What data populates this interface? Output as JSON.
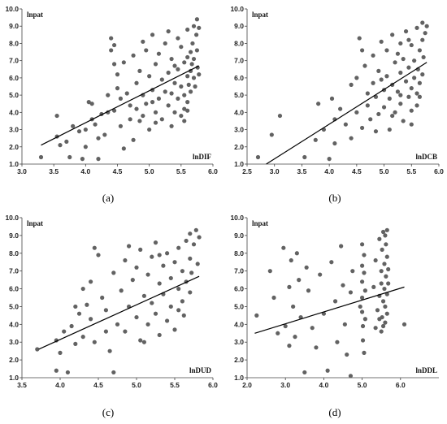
{
  "chart_data": [
    {
      "type": "scatter",
      "caption": "(a)",
      "ylabel": "lnpat",
      "xlabel": "lnDIF",
      "xlim": [
        3.0,
        6.0
      ],
      "ylim": [
        1.0,
        10.0
      ],
      "xticks": [
        "3.0",
        "3.5",
        "4.0",
        "4.5",
        "5.0",
        "5.5",
        "6.0"
      ],
      "yticks": [
        "1.0",
        "2.0",
        "3.0",
        "4.0",
        "5.0",
        "6.0",
        "7.0",
        "8.0",
        "9.0",
        "10.0"
      ],
      "trendline": {
        "x": [
          3.3,
          5.78
        ],
        "y": [
          2.1,
          6.7
        ]
      },
      "points": [
        [
          3.3,
          1.4
        ],
        [
          3.55,
          3.8
        ],
        [
          3.55,
          2.6
        ],
        [
          3.6,
          2.1
        ],
        [
          3.7,
          2.3
        ],
        [
          3.75,
          1.4
        ],
        [
          3.8,
          3.2
        ],
        [
          3.9,
          2.9
        ],
        [
          3.95,
          1.3
        ],
        [
          4.0,
          3.0
        ],
        [
          4.0,
          2.0
        ],
        [
          4.05,
          4.6
        ],
        [
          4.1,
          4.5
        ],
        [
          4.1,
          3.6
        ],
        [
          4.15,
          3.3
        ],
        [
          4.2,
          1.3
        ],
        [
          4.2,
          2.5
        ],
        [
          4.25,
          3.9
        ],
        [
          4.3,
          2.7
        ],
        [
          4.35,
          5.0
        ],
        [
          4.35,
          4.0
        ],
        [
          4.4,
          8.3
        ],
        [
          4.4,
          7.6
        ],
        [
          4.45,
          7.9
        ],
        [
          4.45,
          6.8
        ],
        [
          4.5,
          6.2
        ],
        [
          4.5,
          5.4
        ],
        [
          4.55,
          4.8
        ],
        [
          4.55,
          3.2
        ],
        [
          4.6,
          1.9
        ],
        [
          4.6,
          6.9
        ],
        [
          4.65,
          5.1
        ],
        [
          4.7,
          4.4
        ],
        [
          4.7,
          3.6
        ],
        [
          4.75,
          7.3
        ],
        [
          4.75,
          2.4
        ],
        [
          4.8,
          5.7
        ],
        [
          4.8,
          4.2
        ],
        [
          4.85,
          6.4
        ],
        [
          4.85,
          3.5
        ],
        [
          4.9,
          8.1
        ],
        [
          4.9,
          5.0
        ],
        [
          4.95,
          7.6
        ],
        [
          4.95,
          4.5
        ],
        [
          5.0,
          3.0
        ],
        [
          5.0,
          6.1
        ],
        [
          5.05,
          8.5
        ],
        [
          5.05,
          5.3
        ],
        [
          5.1,
          4.0
        ],
        [
          5.1,
          6.8
        ],
        [
          5.15,
          7.4
        ],
        [
          5.15,
          4.8
        ],
        [
          5.2,
          3.6
        ],
        [
          5.2,
          5.9
        ],
        [
          5.25,
          8.0
        ],
        [
          5.25,
          5.2
        ],
        [
          5.3,
          8.7
        ],
        [
          5.3,
          6.3
        ],
        [
          5.3,
          4.4
        ],
        [
          5.35,
          7.1
        ],
        [
          5.35,
          3.2
        ],
        [
          5.4,
          5.7
        ],
        [
          5.4,
          4.0
        ],
        [
          5.45,
          8.3
        ],
        [
          5.45,
          6.5
        ],
        [
          5.45,
          4.8
        ],
        [
          5.5,
          7.8
        ],
        [
          5.5,
          5.5
        ],
        [
          5.5,
          3.8
        ],
        [
          5.55,
          6.9
        ],
        [
          5.55,
          5.0
        ],
        [
          5.55,
          4.2
        ],
        [
          5.6,
          8.8
        ],
        [
          5.6,
          7.2
        ],
        [
          5.6,
          6.1
        ],
        [
          5.6,
          4.6
        ],
        [
          5.62,
          5.6
        ],
        [
          5.65,
          7.5
        ],
        [
          5.65,
          6.4
        ],
        [
          5.65,
          5.2
        ],
        [
          5.67,
          6.8
        ],
        [
          5.68,
          8.0
        ],
        [
          5.7,
          9.0
        ],
        [
          5.7,
          7.1
        ],
        [
          5.7,
          6.0
        ],
        [
          5.72,
          5.5
        ],
        [
          5.74,
          8.5
        ],
        [
          5.75,
          9.4
        ],
        [
          5.75,
          7.6
        ],
        [
          5.76,
          6.6
        ],
        [
          5.78,
          8.9
        ],
        [
          5.78,
          6.2
        ],
        [
          4.45,
          4.1
        ],
        [
          5.1,
          3.4
        ],
        [
          5.35,
          5.1
        ],
        [
          5.55,
          3.5
        ],
        [
          5.6,
          4.1
        ],
        [
          5.05,
          4.6
        ],
        [
          4.9,
          3.8
        ],
        [
          5.4,
          6.7
        ]
      ]
    },
    {
      "type": "scatter",
      "caption": "(b)",
      "ylabel": "lnpat",
      "xlabel": "lnDCB",
      "xlim": [
        2.5,
        6.0
      ],
      "ylim": [
        1.0,
        10.0
      ],
      "xticks": [
        "2.5",
        "3.0",
        "3.5",
        "4.0",
        "4.5",
        "5.0",
        "5.5",
        "6.0"
      ],
      "yticks": [
        "1.0",
        "2.0",
        "3.0",
        "4.0",
        "5.0",
        "6.0",
        "7.0",
        "8.0",
        "9.0",
        "10.0"
      ],
      "trendline": {
        "x": [
          2.85,
          5.78
        ],
        "y": [
          1.0,
          6.9
        ]
      },
      "points": [
        [
          2.7,
          1.4
        ],
        [
          2.95,
          2.7
        ],
        [
          3.1,
          3.8
        ],
        [
          3.55,
          1.4
        ],
        [
          3.75,
          2.4
        ],
        [
          3.8,
          4.5
        ],
        [
          3.9,
          3.0
        ],
        [
          4.0,
          1.3
        ],
        [
          4.05,
          4.8
        ],
        [
          4.1,
          3.6
        ],
        [
          4.1,
          2.2
        ],
        [
          4.2,
          4.2
        ],
        [
          4.3,
          3.3
        ],
        [
          4.4,
          5.6
        ],
        [
          4.4,
          2.5
        ],
        [
          4.5,
          4.0
        ],
        [
          4.5,
          6.0
        ],
        [
          4.55,
          8.3
        ],
        [
          4.6,
          7.6
        ],
        [
          4.6,
          3.1
        ],
        [
          4.65,
          6.7
        ],
        [
          4.7,
          5.1
        ],
        [
          4.7,
          4.4
        ],
        [
          4.75,
          3.6
        ],
        [
          4.8,
          7.3
        ],
        [
          4.8,
          5.7
        ],
        [
          4.85,
          4.9
        ],
        [
          4.9,
          6.4
        ],
        [
          4.9,
          3.9
        ],
        [
          4.95,
          8.1
        ],
        [
          5.0,
          5.3
        ],
        [
          5.0,
          4.3
        ],
        [
          5.05,
          7.6
        ],
        [
          5.05,
          6.1
        ],
        [
          5.1,
          4.8
        ],
        [
          5.1,
          3.0
        ],
        [
          5.15,
          8.5
        ],
        [
          5.15,
          5.6
        ],
        [
          5.2,
          6.9
        ],
        [
          5.2,
          4.0
        ],
        [
          5.25,
          7.4
        ],
        [
          5.25,
          5.2
        ],
        [
          5.3,
          8.0
        ],
        [
          5.3,
          6.3
        ],
        [
          5.3,
          4.5
        ],
        [
          5.35,
          7.1
        ],
        [
          5.35,
          3.5
        ],
        [
          5.4,
          5.8
        ],
        [
          5.4,
          8.7
        ],
        [
          5.45,
          6.6
        ],
        [
          5.45,
          4.9
        ],
        [
          5.5,
          7.9
        ],
        [
          5.5,
          5.4
        ],
        [
          5.5,
          4.1
        ],
        [
          5.55,
          7.0
        ],
        [
          5.55,
          6.0
        ],
        [
          5.6,
          8.9
        ],
        [
          5.6,
          5.1
        ],
        [
          5.62,
          6.5
        ],
        [
          5.65,
          7.6
        ],
        [
          5.65,
          5.7
        ],
        [
          5.7,
          9.2
        ],
        [
          5.7,
          8.2
        ],
        [
          5.7,
          6.2
        ],
        [
          5.72,
          7.2
        ],
        [
          5.75,
          8.6
        ],
        [
          5.78,
          9.0
        ],
        [
          5.5,
          3.3
        ],
        [
          5.3,
          5.0
        ],
        [
          4.95,
          5.9
        ],
        [
          5.6,
          4.4
        ],
        [
          5.15,
          3.8
        ],
        [
          4.85,
          2.9
        ],
        [
          5.45,
          8.2
        ],
        [
          5.65,
          4.9
        ]
      ]
    },
    {
      "type": "scatter",
      "caption": "(c)",
      "ylabel": "lnpat",
      "xlabel": "lnDUD",
      "xlim": [
        3.5,
        6.0
      ],
      "ylim": [
        1.0,
        10.0
      ],
      "xticks": [
        "3.5",
        "4.0",
        "4.5",
        "5.0",
        "5.5",
        "6.0"
      ],
      "yticks": [
        "1.0",
        "2.0",
        "3.0",
        "4.0",
        "5.0",
        "6.0",
        "7.0",
        "8.0",
        "9.0",
        "10.0"
      ],
      "trendline": {
        "x": [
          3.72,
          5.82
        ],
        "y": [
          2.6,
          6.7
        ]
      },
      "points": [
        [
          3.7,
          2.6
        ],
        [
          3.95,
          3.1
        ],
        [
          3.95,
          1.4
        ],
        [
          4.0,
          2.4
        ],
        [
          4.05,
          3.6
        ],
        [
          4.1,
          1.3
        ],
        [
          4.15,
          3.9
        ],
        [
          4.2,
          2.9
        ],
        [
          4.25,
          4.6
        ],
        [
          4.3,
          3.3
        ],
        [
          4.3,
          6.0
        ],
        [
          4.35,
          5.1
        ],
        [
          4.4,
          4.3
        ],
        [
          4.4,
          6.4
        ],
        [
          4.45,
          8.3
        ],
        [
          4.45,
          3.0
        ],
        [
          4.5,
          7.9
        ],
        [
          4.55,
          5.5
        ],
        [
          4.6,
          4.8
        ],
        [
          4.65,
          2.5
        ],
        [
          4.7,
          6.9
        ],
        [
          4.7,
          1.3
        ],
        [
          4.75,
          4.0
        ],
        [
          4.8,
          5.9
        ],
        [
          4.85,
          7.6
        ],
        [
          4.85,
          3.6
        ],
        [
          4.9,
          8.4
        ],
        [
          4.9,
          5.0
        ],
        [
          4.95,
          6.5
        ],
        [
          5.0,
          4.4
        ],
        [
          5.0,
          7.2
        ],
        [
          5.05,
          3.1
        ],
        [
          5.05,
          8.2
        ],
        [
          5.1,
          5.6
        ],
        [
          5.15,
          6.8
        ],
        [
          5.15,
          4.0
        ],
        [
          5.2,
          7.8
        ],
        [
          5.2,
          5.2
        ],
        [
          5.25,
          8.6
        ],
        [
          5.25,
          4.6
        ],
        [
          5.3,
          6.3
        ],
        [
          5.3,
          3.4
        ],
        [
          5.35,
          7.3
        ],
        [
          5.35,
          5.7
        ],
        [
          5.4,
          8.0
        ],
        [
          5.4,
          4.2
        ],
        [
          5.45,
          6.6
        ],
        [
          5.45,
          5.0
        ],
        [
          5.5,
          7.5
        ],
        [
          5.5,
          3.7
        ],
        [
          5.55,
          8.3
        ],
        [
          5.55,
          6.0
        ],
        [
          5.6,
          5.3
        ],
        [
          5.6,
          7.0
        ],
        [
          5.62,
          4.5
        ],
        [
          5.65,
          8.7
        ],
        [
          5.65,
          6.4
        ],
        [
          5.7,
          9.1
        ],
        [
          5.7,
          7.7
        ],
        [
          5.7,
          5.8
        ],
        [
          5.72,
          6.9
        ],
        [
          5.75,
          8.5
        ],
        [
          5.78,
          9.3
        ],
        [
          5.8,
          7.4
        ],
        [
          5.82,
          8.9
        ],
        [
          4.6,
          3.6
        ],
        [
          5.1,
          3.0
        ],
        [
          5.55,
          4.8
        ],
        [
          4.2,
          5.0
        ],
        [
          5.3,
          7.9
        ]
      ]
    },
    {
      "type": "scatter",
      "caption": "(d)",
      "ylabel": "lnpat",
      "xlabel": "lnDDL",
      "xlim": [
        2.0,
        7.0
      ],
      "ylim": [
        1.0,
        10.0
      ],
      "xticks": [
        "2.0",
        "3.0",
        "4.0",
        "5.0",
        "6.0"
      ],
      "yticks": [
        "1.0",
        "2.0",
        "3.0",
        "4.0",
        "5.0",
        "6.0",
        "7.0",
        "8.0",
        "9.0",
        "10.0"
      ],
      "trendline": {
        "x": [
          2.2,
          6.1
        ],
        "y": [
          3.5,
          6.1
        ]
      },
      "points": [
        [
          2.25,
          4.5
        ],
        [
          2.6,
          7.0
        ],
        [
          2.7,
          5.5
        ],
        [
          2.8,
          3.5
        ],
        [
          2.95,
          8.3
        ],
        [
          3.0,
          3.9
        ],
        [
          3.1,
          6.1
        ],
        [
          3.1,
          2.8
        ],
        [
          3.15,
          7.6
        ],
        [
          3.2,
          5.0
        ],
        [
          3.25,
          3.3
        ],
        [
          3.3,
          8.0
        ],
        [
          3.35,
          6.5
        ],
        [
          3.4,
          4.4
        ],
        [
          3.5,
          1.3
        ],
        [
          3.55,
          7.2
        ],
        [
          3.6,
          5.9
        ],
        [
          3.7,
          3.8
        ],
        [
          3.8,
          2.7
        ],
        [
          3.9,
          6.8
        ],
        [
          4.0,
          4.6
        ],
        [
          4.1,
          1.4
        ],
        [
          4.2,
          7.5
        ],
        [
          4.3,
          5.3
        ],
        [
          4.35,
          3.0
        ],
        [
          4.45,
          8.4
        ],
        [
          4.5,
          6.2
        ],
        [
          4.55,
          4.0
        ],
        [
          4.6,
          2.3
        ],
        [
          4.7,
          1.1
        ],
        [
          4.7,
          5.8
        ],
        [
          4.75,
          7.0
        ],
        [
          4.95,
          5.0
        ],
        [
          5.0,
          8.5
        ],
        [
          5.0,
          7.3
        ],
        [
          5.0,
          6.4
        ],
        [
          5.0,
          5.5
        ],
        [
          5.0,
          4.7
        ],
        [
          5.02,
          3.9
        ],
        [
          5.02,
          3.1
        ],
        [
          5.05,
          2.4
        ],
        [
          5.05,
          7.9
        ],
        [
          5.05,
          6.9
        ],
        [
          5.08,
          5.9
        ],
        [
          5.08,
          4.3
        ],
        [
          5.3,
          6.1
        ],
        [
          5.35,
          7.6
        ],
        [
          5.4,
          4.8
        ],
        [
          5.45,
          8.8
        ],
        [
          5.45,
          5.6
        ],
        [
          5.5,
          3.6
        ],
        [
          5.5,
          7.0
        ],
        [
          5.5,
          6.3
        ],
        [
          5.52,
          4.4
        ],
        [
          5.52,
          8.2
        ],
        [
          5.55,
          5.3
        ],
        [
          5.55,
          3.9
        ],
        [
          5.58,
          7.4
        ],
        [
          5.58,
          6.0
        ],
        [
          5.6,
          9.0
        ],
        [
          5.6,
          5.0
        ],
        [
          5.6,
          4.1
        ],
        [
          5.62,
          6.7
        ],
        [
          5.62,
          8.5
        ],
        [
          5.65,
          9.3
        ],
        [
          5.65,
          7.8
        ],
        [
          5.65,
          5.7
        ],
        [
          5.65,
          4.6
        ],
        [
          5.68,
          6.3
        ],
        [
          5.68,
          7.1
        ],
        [
          6.1,
          4.0
        ],
        [
          5.45,
          4.3
        ],
        [
          5.35,
          3.8
        ],
        [
          5.55,
          9.2
        ]
      ]
    }
  ]
}
